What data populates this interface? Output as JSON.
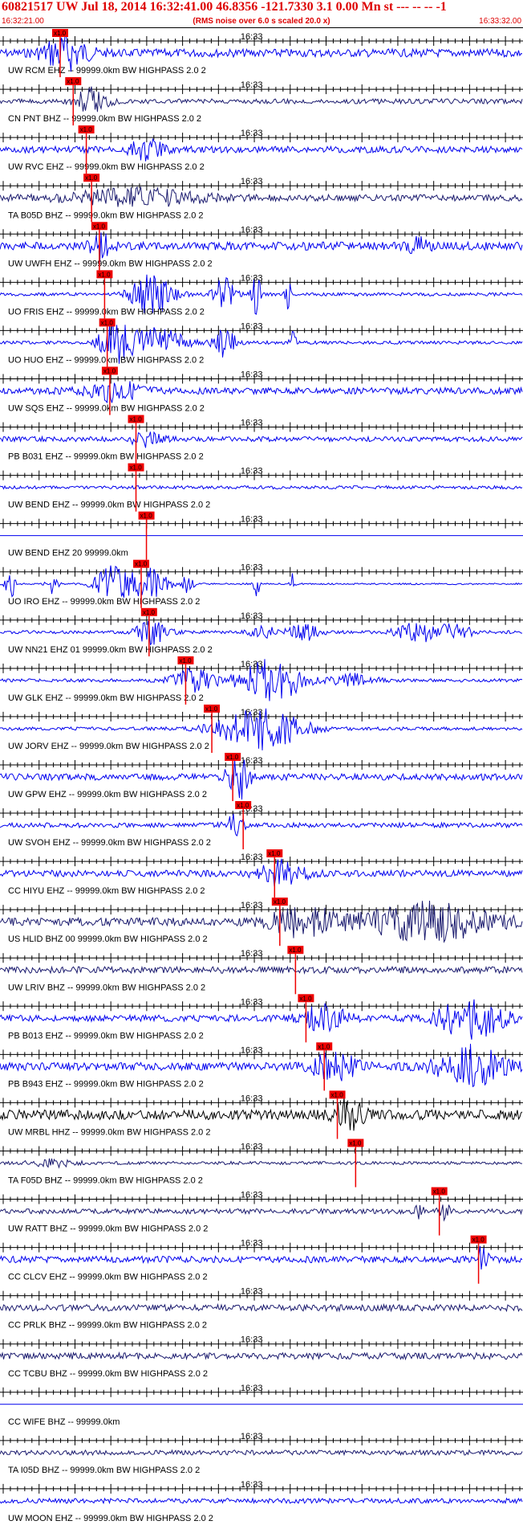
{
  "header": {
    "title": "60821517 UW Jul 18, 2014 16:32:41.00   46.8356 -121.7330  3.1 0.00 Mn st --- -- --  -1",
    "start_time": "16:32:21.00",
    "note": "(RMS noise over 6.0 s scaled 20.0 x)",
    "end_time": "16:33:32.00"
  },
  "chart_data": {
    "type": "line",
    "title": "60821517 UW Jul 18, 2014 16:32:41.00   46.8356 -121.7330  3.1 0.00 Mn st --- -- --  -1",
    "x_range": [
      "16:32:21.00",
      "16:33:32.00"
    ],
    "center_tick_label": "16:33",
    "pick_label": "x1.0",
    "colors": {
      "header": "#dd0000",
      "pick": "#ee0000",
      "blue": "#0000ee",
      "navy": "#1a1a6e",
      "black": "#000000"
    },
    "series": [
      {
        "label": "UW RCM EHZ -- 99999.0km BW  HIGHPASS  2.0  2",
        "pick": 0.115,
        "color": "blue",
        "amp": 5,
        "events": [
          [
            0.125,
            0.04,
            22
          ]
        ]
      },
      {
        "label": "CN PNT BHZ -- 99999.0km BW  HIGHPASS  2.0  2",
        "pick": 0.14,
        "color": "navy",
        "amp": 3,
        "events": [
          [
            0.175,
            0.03,
            16
          ]
        ]
      },
      {
        "label": "UW RVC EHZ -- 99999.0km BW  HIGHPASS  2.0  2",
        "pick": 0.165,
        "color": "blue",
        "amp": 4,
        "events": [
          [
            0.28,
            0.03,
            12
          ]
        ]
      },
      {
        "label": "TA B05D BHZ -- 99999.0km BW  HIGHPASS  2.0  2",
        "pick": 0.175,
        "color": "navy",
        "amp": 4,
        "events": [
          [
            0.26,
            0.12,
            10
          ]
        ]
      },
      {
        "label": "UW UWFH EHZ -- 99999.0km BW  HIGHPASS  2.0  2",
        "pick": 0.19,
        "color": "blue",
        "amp": 5,
        "events": [
          [
            0.195,
            0.02,
            16
          ],
          [
            0.8,
            0.02,
            10
          ]
        ]
      },
      {
        "label": "UO FRIS EHZ -- 99999.0km BW  HIGHPASS  2.0  2",
        "pick": 0.2,
        "color": "blue",
        "amp": 2,
        "events": [
          [
            0.29,
            0.04,
            26
          ],
          [
            0.43,
            0.02,
            22
          ],
          [
            0.49,
            0.01,
            24
          ],
          [
            0.55,
            0.005,
            26
          ]
        ]
      },
      {
        "label": "UO HUO EHZ -- 99999.0km BW  HIGHPASS  2.0  2",
        "pick": 0.205,
        "color": "blue",
        "amp": 2,
        "events": [
          [
            0.22,
            0.03,
            24
          ],
          [
            0.3,
            0.05,
            20
          ],
          [
            0.43,
            0.02,
            18
          ],
          [
            0.56,
            0.005,
            20
          ]
        ]
      },
      {
        "label": "UW SQS EHZ -- 99999.0km BW  HIGHPASS  2.0  2",
        "pick": 0.21,
        "color": "blue",
        "amp": 4,
        "events": [
          [
            0.22,
            0.05,
            12
          ]
        ]
      },
      {
        "label": "PB B031 EHZ -- 99999.0km BW  HIGHPASS  2.0  2",
        "pick": 0.26,
        "color": "blue",
        "amp": 3,
        "events": [
          [
            0.28,
            0.03,
            8
          ]
        ]
      },
      {
        "label": "UW BEND EHZ -- 99999.0km BW  HIGHPASS  2.0  2",
        "pick": 0.26,
        "color": "blue",
        "amp": 2,
        "events": []
      },
      {
        "label": "UW BEND EHZ 20 99999.0km",
        "pick": 0.28,
        "color": "blue",
        "amp": 0,
        "events": []
      },
      {
        "label": "UO IRO EHZ -- 99999.0km BW  HIGHPASS  2.0  2",
        "pick": 0.27,
        "color": "blue",
        "amp": 1,
        "events": [
          [
            0.02,
            0.01,
            18
          ],
          [
            0.1,
            0.01,
            14
          ],
          [
            0.21,
            0.03,
            22
          ],
          [
            0.28,
            0.04,
            20
          ],
          [
            0.36,
            0.01,
            14
          ],
          [
            0.49,
            0.005,
            22
          ],
          [
            0.56,
            0.005,
            14
          ]
        ]
      },
      {
        "label": "UW NN21 EHZ 01 99999.0km BW  HIGHPASS  2.0  2",
        "pick": 0.285,
        "color": "blue",
        "amp": 2,
        "events": [
          [
            0.29,
            0.03,
            14
          ],
          [
            0.5,
            0.02,
            12
          ],
          [
            0.58,
            0.03,
            10
          ],
          [
            0.8,
            0.04,
            12
          ],
          [
            0.87,
            0.03,
            10
          ]
        ]
      },
      {
        "label": "UW GLK EHZ -- 99999.0km BW  HIGHPASS  2.0  2",
        "pick": 0.355,
        "color": "blue",
        "amp": 2,
        "events": [
          [
            0.37,
            0.04,
            14
          ],
          [
            0.52,
            0.06,
            26
          ],
          [
            0.68,
            0.04,
            8
          ]
        ]
      },
      {
        "label": "UW JORV EHZ -- 99999.0km BW  HIGHPASS  2.0  2",
        "pick": 0.405,
        "color": "blue",
        "amp": 2,
        "events": [
          [
            0.5,
            0.08,
            26
          ]
        ]
      },
      {
        "label": "UW GPW EHZ -- 99999.0km BW  HIGHPASS  2.0  2",
        "pick": 0.445,
        "color": "blue",
        "amp": 4,
        "events": [
          [
            0.455,
            0.02,
            28
          ]
        ]
      },
      {
        "label": "UW SVOH EHZ -- 99999.0km BW  HIGHPASS  2.0  2",
        "pick": 0.465,
        "color": "blue",
        "amp": 3,
        "events": [
          [
            0.45,
            0.02,
            12
          ]
        ]
      },
      {
        "label": "CC HIYU EHZ -- 99999.0km BW  HIGHPASS  2.0  2",
        "pick": 0.525,
        "color": "blue",
        "amp": 4,
        "events": [
          [
            0.54,
            0.04,
            16
          ]
        ]
      },
      {
        "label": "US HLID BHZ 00 99999.0km BW  HIGHPASS  2.0  2",
        "pick": 0.535,
        "color": "navy",
        "amp": 5,
        "events": [
          [
            0.58,
            0.06,
            18
          ],
          [
            0.82,
            0.12,
            22
          ]
        ]
      },
      {
        "label": "UW LRIV BHZ -- 99999.0km BW  HIGHPASS  2.0  2",
        "pick": 0.565,
        "color": "navy",
        "amp": 4,
        "events": []
      },
      {
        "label": "PB B013 EHZ -- 99999.0km BW  HIGHPASS  2.0  2",
        "pick": 0.585,
        "color": "blue",
        "amp": 4,
        "events": [
          [
            0.62,
            0.04,
            16
          ],
          [
            0.9,
            0.06,
            24
          ]
        ]
      },
      {
        "label": "PB B943 EHZ -- 99999.0km BW  HIGHPASS  2.0  2",
        "pick": 0.62,
        "color": "blue",
        "amp": 5,
        "events": [
          [
            0.64,
            0.04,
            18
          ],
          [
            0.9,
            0.06,
            24
          ]
        ]
      },
      {
        "label": "UW MRBL HHZ -- 99999.0km BW  HIGHPASS  2.0  2",
        "pick": 0.645,
        "color": "black",
        "amp": 6,
        "events": [
          [
            0.67,
            0.03,
            18
          ]
        ]
      },
      {
        "label": "TA F05D BHZ -- 99999.0km BW  HIGHPASS  2.0  2",
        "pick": 0.68,
        "color": "navy",
        "amp": 2,
        "events": [
          [
            0.1,
            0.04,
            5
          ]
        ]
      },
      {
        "label": "UW RATT BHZ -- 99999.0km BW  HIGHPASS  2.0  2",
        "pick": 0.84,
        "color": "navy",
        "amp": 3,
        "events": [
          [
            0.8,
            0.01,
            8
          ],
          [
            0.85,
            0.01,
            10
          ]
        ]
      },
      {
        "label": "CC CLCV EHZ -- 99999.0km BW  HIGHPASS  2.0  2",
        "pick": 0.915,
        "color": "blue",
        "amp": 4,
        "events": [
          [
            0.925,
            0.01,
            24
          ]
        ]
      },
      {
        "label": "CC PRLK BHZ -- 99999.0km BW  HIGHPASS  2.0  2",
        "pick": null,
        "color": "navy",
        "amp": 4,
        "events": []
      },
      {
        "label": "CC TCBU BHZ -- 99999.0km BW  HIGHPASS  2.0  2",
        "pick": null,
        "color": "navy",
        "amp": 4,
        "events": []
      },
      {
        "label": "CC WIFE BHZ -- 99999.0km",
        "pick": null,
        "color": "blue",
        "amp": 0,
        "events": []
      },
      {
        "label": "TA I05D BHZ -- 99999.0km BW  HIGHPASS  2.0  2",
        "pick": null,
        "color": "navy",
        "amp": 3,
        "events": []
      },
      {
        "label": "UW MOON EHZ -- 99999.0km BW  HIGHPASS  2.0  2",
        "pick": null,
        "color": "blue",
        "amp": 3,
        "events": []
      }
    ]
  }
}
